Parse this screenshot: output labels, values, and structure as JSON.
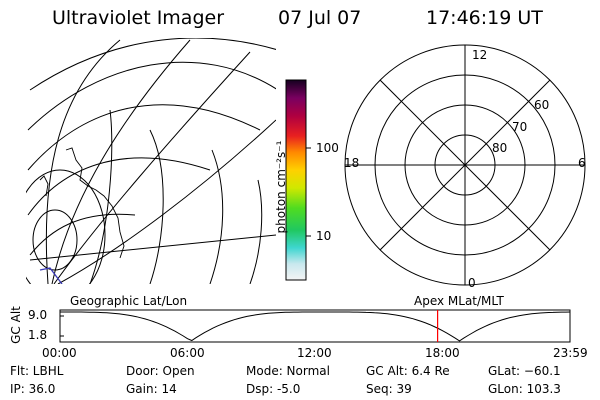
{
  "header": {
    "instrument": "Ultraviolet Imager",
    "date": "07 Jul 07",
    "time": "17:46:19 UT"
  },
  "colorbar": {
    "unit_label": "photon cm⁻²s⁻¹",
    "ticks": [
      "100",
      "10"
    ]
  },
  "polar_plot": {
    "mlt_labels": {
      "top": "12",
      "left": "18",
      "right": "6",
      "bottom": "0"
    },
    "lat_labels": [
      "60",
      "70",
      "80"
    ]
  },
  "timeline": {
    "left_title": "Geographic Lat/Lon",
    "right_title": "Apex MLat/MLT",
    "axis_label": "GC Alt",
    "y_ticks": [
      "9.0",
      "1.8"
    ],
    "x_ticks": [
      "00:00",
      "06:00",
      "12:00",
      "18:00",
      "23:59"
    ],
    "marker_time_hours": 17.77,
    "marker_color": "#ff0000"
  },
  "info": {
    "flt": "Flt: LBHL",
    "ip": "IP: 36.0",
    "door": "Door: Open",
    "gain": "Gain: 14",
    "mode": "Mode: Normal",
    "dsp": "Dsp:    -5.0",
    "gcalt": "GC Alt: 6.4 Re",
    "seq": "Seq: 39",
    "glat": "GLat: −60.1",
    "glon": "GLon: 103.3"
  }
}
